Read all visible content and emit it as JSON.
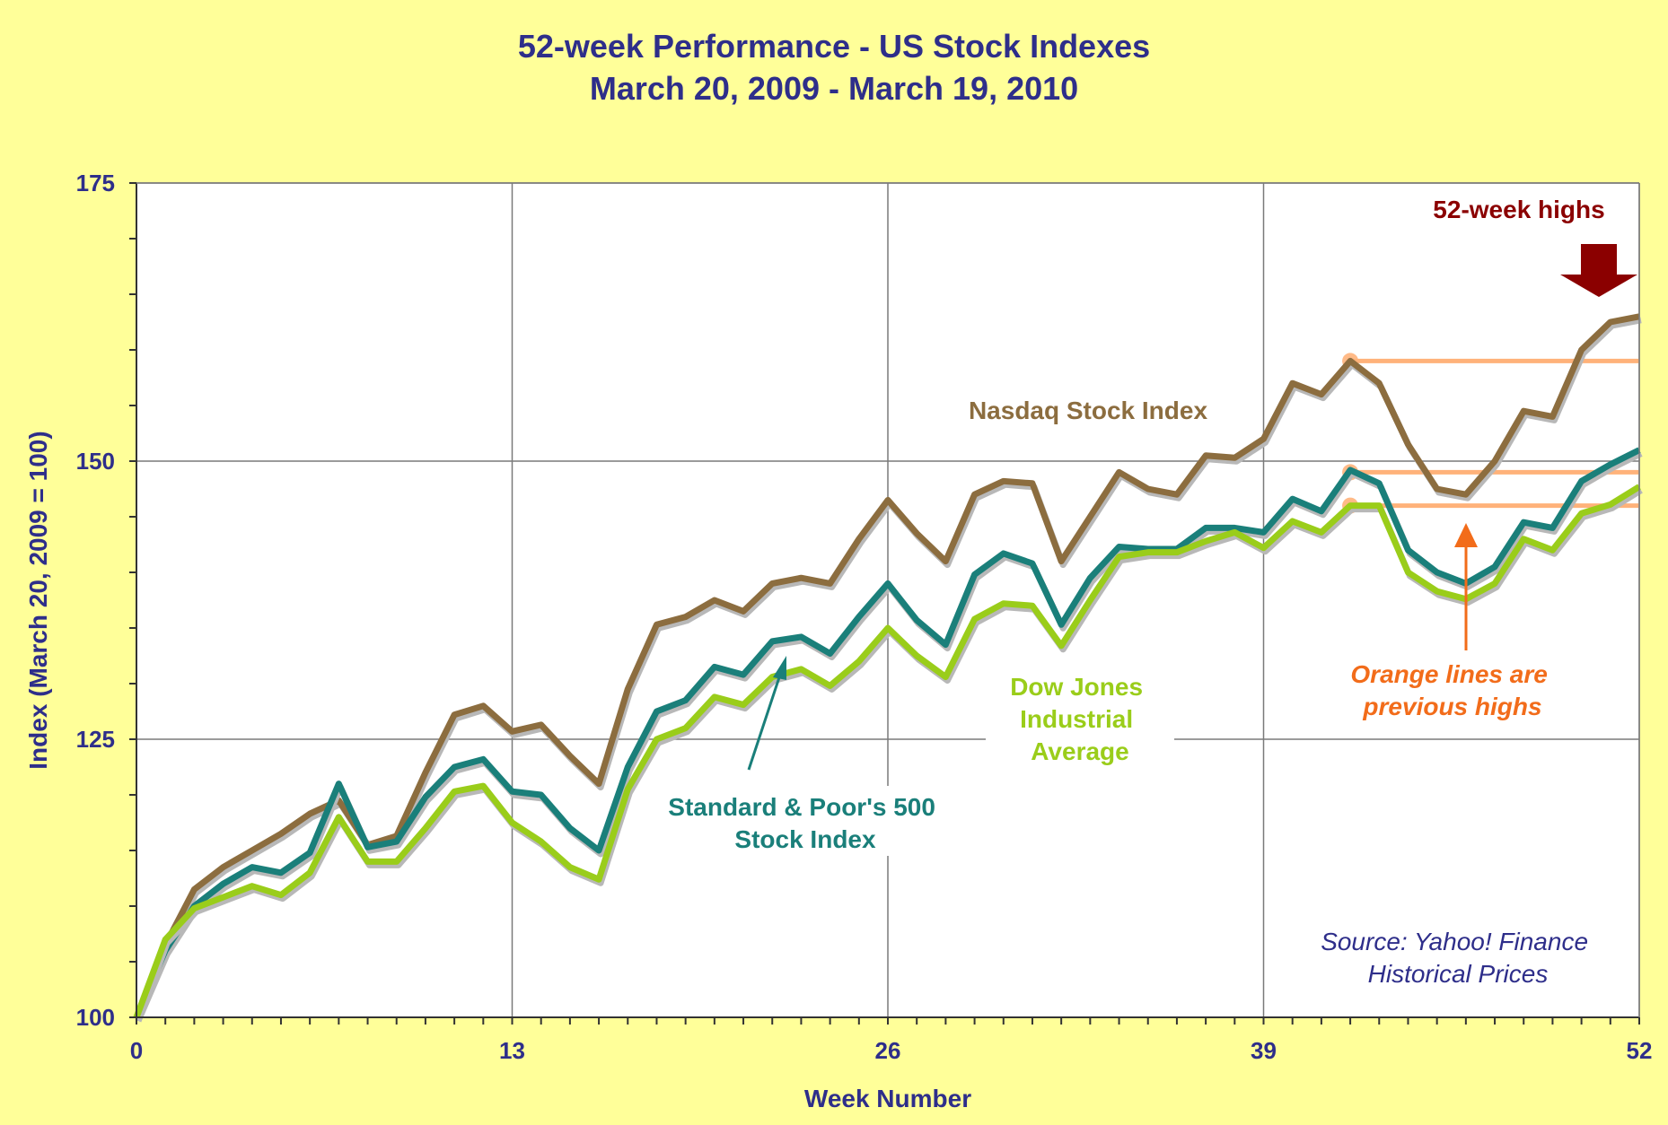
{
  "chart_data": {
    "type": "line",
    "title": "52-week Performance - US Stock Indexes",
    "subtitle": "March 20, 2009 - March 19, 2010",
    "xlabel": "Week Number",
    "ylabel": "Index (March 20, 2009 = 100)",
    "xlim": [
      0,
      52
    ],
    "ylim": [
      100,
      175
    ],
    "xticks": [
      0,
      13,
      26,
      39,
      52
    ],
    "yticks": [
      100,
      125,
      150,
      175
    ],
    "grid": true,
    "x": [
      0,
      1,
      2,
      3,
      4,
      5,
      6,
      7,
      8,
      9,
      10,
      11,
      12,
      13,
      14,
      15,
      16,
      17,
      18,
      19,
      20,
      21,
      22,
      23,
      24,
      25,
      26,
      27,
      28,
      29,
      30,
      31,
      32,
      33,
      34,
      35,
      36,
      37,
      38,
      39,
      40,
      41,
      42,
      43,
      44,
      45,
      46,
      47,
      48,
      49,
      50,
      51,
      52
    ],
    "series": [
      {
        "name": "Nasdaq Stock Index",
        "color": "#8c6d3f",
        "values": [
          100,
          106.5,
          111.5,
          113.5,
          115,
          116.5,
          118.3,
          119.5,
          115.5,
          116.3,
          122,
          127.2,
          128,
          125.7,
          126.3,
          123.5,
          121,
          129.5,
          135.3,
          136,
          137.5,
          136.5,
          139,
          139.5,
          139,
          143,
          146.5,
          143.5,
          141,
          147,
          148.2,
          148,
          141,
          145,
          149,
          147.5,
          147,
          150.5,
          150.3,
          152,
          157,
          156,
          159,
          157,
          151.5,
          147.5,
          147,
          150,
          154.5,
          154,
          160,
          162.5,
          163
        ]
      },
      {
        "name": "Standard & Poor's 500 Stock Index",
        "color": "#1a7f7a",
        "values": [
          100,
          106,
          110,
          112,
          113.5,
          113,
          114.8,
          121,
          115.3,
          115.8,
          119.8,
          122.5,
          123.2,
          120.3,
          120,
          117,
          115,
          122.5,
          127.5,
          128.5,
          131.5,
          130.8,
          133.8,
          134.2,
          132.7,
          136,
          139,
          135.7,
          133.5,
          139.8,
          141.7,
          140.8,
          135.3,
          139.5,
          142.3,
          142.1,
          142.1,
          144,
          144,
          143.6,
          146.6,
          145.5,
          149.2,
          148,
          142,
          140,
          139,
          140.5,
          144.5,
          144,
          148.2,
          149.7,
          151
        ]
      },
      {
        "name": "Dow Jones Industrial Average",
        "color": "#9acd1a",
        "values": [
          100,
          107,
          109.8,
          110.8,
          111.8,
          111,
          113,
          118,
          114,
          114,
          117,
          120.3,
          120.8,
          117.5,
          115.8,
          113.5,
          112.4,
          120.5,
          125,
          126,
          128.8,
          128.1,
          130.6,
          131.3,
          129.8,
          132,
          135,
          132.5,
          130.6,
          135.8,
          137.2,
          137,
          133.4,
          137.5,
          141.4,
          141.8,
          141.8,
          142.8,
          143.6,
          142.2,
          144.6,
          143.6,
          146,
          146,
          140,
          138.3,
          137.6,
          139,
          143,
          142,
          145.3,
          146.1,
          147.7
        ]
      }
    ],
    "previous_highs": [
      {
        "series": "Nasdaq Stock Index",
        "x": 42,
        "value": 159
      },
      {
        "series": "Standard & Poor's 500 Stock Index",
        "x": 42,
        "value": 149
      },
      {
        "series": "Dow Jones Industrial Average",
        "x": 42,
        "value": 146
      }
    ],
    "highs_marker_x": 52,
    "annotations": {
      "highs_label": "52-week highs",
      "nasdaq_label": "Nasdaq Stock Index",
      "sp500_label": [
        "Standard & Poor's 500",
        "Stock Index"
      ],
      "dow_label": [
        "Dow Jones",
        "Industrial",
        "Average"
      ],
      "orange_note": [
        "Orange lines are",
        "previous highs"
      ],
      "source": [
        "Source: Yahoo! Finance",
        "Historical Prices"
      ]
    },
    "colors": {
      "background": "#ffff99",
      "plot_background": "#ffffff",
      "axis_text": "#2e2e8a",
      "highs_arrow": "#8b0000",
      "previous_high_line": "#ffb27a",
      "orange_note": "#f26c1a"
    }
  }
}
